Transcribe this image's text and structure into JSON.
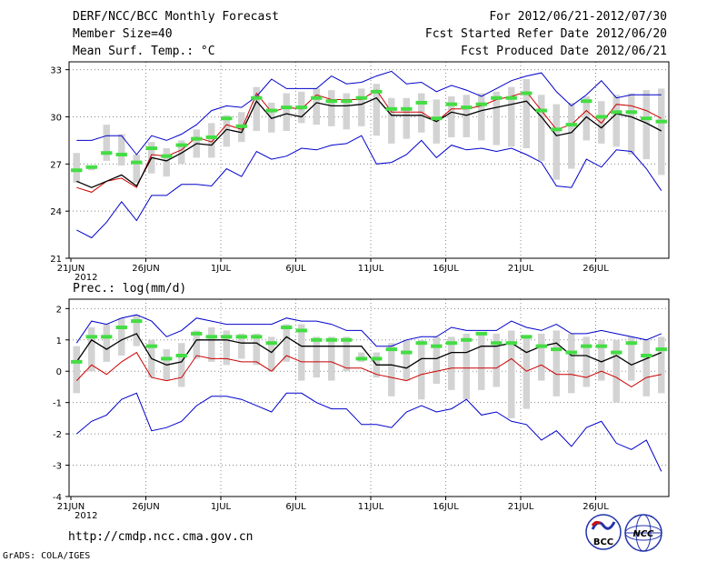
{
  "header": {
    "title": "DERF/NCC/BCC Monthly Forecast",
    "member_size": "Member Size=40",
    "variable1": "Mean Surf. Temp.: °C",
    "fcst_period": "For 2012/06/21-2012/07/30",
    "fcst_started": "Fcst Started Refer Date 2012/06/20",
    "fcst_produced": "Fcst Produced Date 2012/06/21"
  },
  "panel2_label": "Prec.: log(mm/d)",
  "footer": {
    "url": "http://cmdp.ncc.cma.gov.cn",
    "grads": "GrADS: COLA/IGES",
    "logo1_text": "BCC",
    "logo2_text": "NCC"
  },
  "colors": {
    "max_min": "#0000cc",
    "mean": "#000000",
    "median": "#cc0000",
    "box": "#d3d3d3",
    "marker": "#44dd44"
  },
  "chart_data": [
    {
      "type": "box-line",
      "name": "temperature",
      "title": "Mean Surf. Temp.: °C",
      "ylim": [
        21,
        33.5
      ],
      "yticks": [
        21,
        24,
        27,
        30,
        33
      ],
      "x_tick_labels": [
        "21JUN",
        "26JUN",
        "1JUL",
        "6JUL",
        "11JUL",
        "16JUL",
        "21JUL",
        "26JUL"
      ],
      "x_tick_days": [
        0,
        5,
        10,
        15,
        20,
        25,
        30,
        35
      ],
      "x_year_label": "2012",
      "days": 40,
      "series": [
        {
          "name": "max",
          "values": [
            28.5,
            28.5,
            28.8,
            28.8,
            27.6,
            28.8,
            28.5,
            28.9,
            29.5,
            30.4,
            30.7,
            30.6,
            31.3,
            32.4,
            31.8,
            31.8,
            31.8,
            32.6,
            32.1,
            32.2,
            32.6,
            32.9,
            32.1,
            32.2,
            31.6,
            32.0,
            31.7,
            31.3,
            31.8,
            32.3,
            32.6,
            32.8,
            31.6,
            30.7,
            31.4,
            32.3,
            31.2,
            31.4,
            31.4,
            31.4
          ]
        },
        {
          "name": "median",
          "values": [
            25.5,
            25.2,
            25.9,
            26.1,
            25.5,
            27.6,
            27.5,
            27.9,
            28.7,
            28.4,
            29.5,
            29.2,
            31.5,
            30.3,
            30.6,
            30.5,
            31.4,
            31.1,
            31.1,
            31.1,
            31.7,
            30.3,
            30.3,
            30.3,
            29.7,
            30.5,
            30.5,
            30.7,
            31.1,
            31.3,
            31.6,
            30.4,
            29.2,
            29.5,
            30.4,
            29.6,
            30.8,
            30.7,
            30.4,
            29.9
          ]
        },
        {
          "name": "mean",
          "values": [
            25.9,
            25.5,
            25.9,
            26.3,
            25.6,
            27.4,
            27.2,
            27.7,
            28.3,
            28.2,
            29.2,
            29.0,
            31.0,
            29.9,
            30.2,
            30.0,
            30.9,
            30.7,
            30.7,
            30.8,
            31.2,
            30.1,
            30.1,
            30.1,
            29.7,
            30.3,
            30.1,
            30.4,
            30.6,
            30.8,
            31.0,
            30.0,
            28.8,
            29.0,
            30.0,
            29.3,
            30.2,
            30.0,
            29.6,
            29.1
          ]
        },
        {
          "name": "min",
          "values": [
            22.8,
            22.3,
            23.3,
            24.6,
            23.4,
            25.0,
            25.0,
            25.7,
            25.7,
            25.6,
            26.7,
            26.2,
            27.8,
            27.3,
            27.5,
            28.0,
            27.9,
            28.2,
            28.3,
            28.8,
            27.0,
            27.1,
            27.6,
            28.5,
            27.4,
            28.2,
            27.9,
            28.0,
            27.8,
            28.0,
            27.6,
            27.1,
            25.6,
            25.5,
            27.3,
            26.8,
            27.9,
            27.8,
            26.7,
            25.3
          ]
        }
      ],
      "boxes": {
        "low": [
          25.8,
          26.6,
          27.2,
          26.9,
          25.8,
          26.4,
          26.2,
          27.0,
          27.4,
          27.4,
          28.1,
          28.4,
          29.1,
          29.0,
          29.1,
          29.6,
          29.5,
          29.4,
          29.2,
          29.4,
          28.8,
          28.3,
          28.6,
          29.0,
          28.3,
          28.7,
          28.7,
          28.5,
          28.2,
          28.1,
          28.0,
          27.2,
          26.0,
          26.7,
          28.5,
          28.3,
          28.1,
          27.6,
          27.3,
          26.3
        ],
        "high": [
          27.7,
          26.9,
          29.5,
          28.9,
          27.6,
          28.4,
          28.0,
          28.5,
          29.2,
          29.6,
          30.1,
          30.3,
          31.9,
          30.9,
          31.5,
          31.6,
          31.8,
          31.7,
          31.5,
          31.8,
          32.1,
          31.2,
          31.2,
          31.5,
          31.1,
          31.3,
          31.4,
          31.5,
          31.6,
          31.9,
          32.4,
          31.4,
          30.8,
          30.9,
          31.3,
          31.0,
          31.4,
          31.5,
          31.7,
          31.8
        ]
      },
      "markers": [
        26.6,
        26.8,
        27.7,
        27.6,
        27.1,
        28.0,
        27.5,
        28.2,
        28.6,
        28.7,
        29.9,
        29.4,
        31.2,
        30.4,
        30.6,
        30.6,
        31.2,
        31.0,
        31.0,
        31.2,
        31.6,
        30.5,
        30.5,
        30.9,
        29.9,
        30.8,
        30.6,
        30.8,
        31.2,
        31.2,
        31.5,
        30.4,
        29.2,
        29.5,
        31.0,
        30.0,
        30.3,
        30.3,
        29.9,
        29.7
      ]
    },
    {
      "type": "box-line",
      "name": "precipitation",
      "title": "Prec.: log(mm/d)",
      "ylim": [
        -4,
        2.3
      ],
      "yticks": [
        -4,
        -3,
        -2,
        -1,
        0,
        1,
        2
      ],
      "x_tick_labels": [
        "21JUN",
        "26JUN",
        "1JUL",
        "6JUL",
        "11JUL",
        "16JUL",
        "21JUL",
        "26JUL"
      ],
      "x_tick_days": [
        0,
        5,
        10,
        15,
        20,
        25,
        30,
        35
      ],
      "x_year_label": "2012",
      "days": 40,
      "series": [
        {
          "name": "max",
          "values": [
            0.9,
            1.6,
            1.5,
            1.7,
            1.8,
            1.6,
            1.1,
            1.3,
            1.7,
            1.6,
            1.5,
            1.5,
            1.5,
            1.5,
            1.7,
            1.6,
            1.6,
            1.5,
            1.3,
            1.3,
            0.8,
            0.8,
            1.0,
            1.1,
            1.1,
            1.4,
            1.3,
            1.3,
            1.3,
            1.6,
            1.4,
            1.3,
            1.5,
            1.2,
            1.2,
            1.3,
            1.2,
            1.1,
            1.0,
            1.2
          ]
        },
        {
          "name": "mean",
          "values": [
            0.3,
            1.0,
            0.7,
            1.0,
            1.2,
            0.4,
            0.2,
            0.3,
            1.0,
            1.0,
            1.0,
            0.9,
            0.9,
            0.6,
            1.1,
            0.8,
            0.8,
            0.8,
            0.8,
            0.8,
            0.2,
            0.2,
            0.1,
            0.4,
            0.4,
            0.6,
            0.6,
            0.8,
            0.8,
            0.9,
            0.6,
            0.8,
            0.9,
            0.5,
            0.5,
            0.3,
            0.5,
            0.2,
            0.4,
            0.6
          ]
        },
        {
          "name": "median",
          "values": [
            -0.3,
            0.2,
            -0.1,
            0.3,
            0.6,
            -0.2,
            -0.3,
            -0.2,
            0.5,
            0.4,
            0.4,
            0.3,
            0.3,
            0.0,
            0.5,
            0.3,
            0.3,
            0.3,
            0.1,
            0.1,
            -0.1,
            -0.2,
            -0.3,
            -0.1,
            0.0,
            0.1,
            0.1,
            0.1,
            0.1,
            0.4,
            0.0,
            0.2,
            -0.1,
            -0.1,
            -0.2,
            0.0,
            -0.2,
            -0.5,
            -0.2,
            -0.1
          ]
        },
        {
          "name": "min",
          "values": [
            -2.0,
            -1.6,
            -1.4,
            -0.9,
            -0.7,
            -1.9,
            -1.8,
            -1.6,
            -1.1,
            -0.8,
            -0.8,
            -0.9,
            -1.1,
            -1.3,
            -0.7,
            -0.7,
            -1.0,
            -1.2,
            -1.2,
            -1.7,
            -1.7,
            -1.8,
            -1.3,
            -1.1,
            -1.3,
            -1.2,
            -0.9,
            -1.4,
            -1.3,
            -1.6,
            -1.7,
            -2.2,
            -1.9,
            -2.4,
            -1.8,
            -1.6,
            -2.3,
            -2.5,
            -2.2,
            -3.2
          ]
        }
      ],
      "boxes": {
        "low": [
          -0.7,
          0.0,
          0.3,
          0.5,
          0.8,
          -0.2,
          -0.3,
          -0.5,
          0.4,
          0.3,
          0.2,
          0.4,
          0.2,
          0.0,
          0.3,
          -0.3,
          -0.2,
          -0.3,
          0.0,
          0.3,
          -0.2,
          -0.8,
          -0.3,
          -0.9,
          -0.4,
          -0.6,
          -0.9,
          -0.6,
          -0.5,
          -1.5,
          -1.2,
          -0.3,
          -0.8,
          -0.7,
          -0.5,
          -0.3,
          -1.0,
          -0.3,
          -0.8,
          -0.7
        ],
        "high": [
          0.8,
          1.4,
          1.5,
          1.7,
          1.8,
          1.0,
          0.7,
          0.9,
          1.3,
          1.4,
          1.3,
          1.2,
          1.2,
          1.1,
          1.5,
          1.5,
          1.1,
          1.1,
          1.1,
          0.6,
          0.6,
          0.9,
          1.0,
          1.0,
          1.1,
          1.1,
          1.2,
          1.2,
          1.2,
          1.3,
          1.1,
          1.2,
          1.3,
          1.2,
          1.1,
          1.0,
          1.0,
          1.1,
          1.0,
          1.1
        ]
      },
      "markers": [
        0.3,
        1.1,
        1.1,
        1.4,
        1.6,
        0.8,
        0.4,
        0.5,
        1.2,
        1.1,
        1.1,
        1.1,
        1.1,
        0.9,
        1.4,
        1.3,
        1.0,
        1.0,
        1.0,
        0.4,
        0.4,
        0.7,
        0.6,
        0.9,
        0.8,
        0.9,
        1.0,
        1.2,
        0.9,
        0.9,
        1.1,
        0.8,
        0.7,
        0.6,
        0.8,
        0.8,
        0.6,
        0.9,
        0.5,
        0.7
      ]
    }
  ]
}
